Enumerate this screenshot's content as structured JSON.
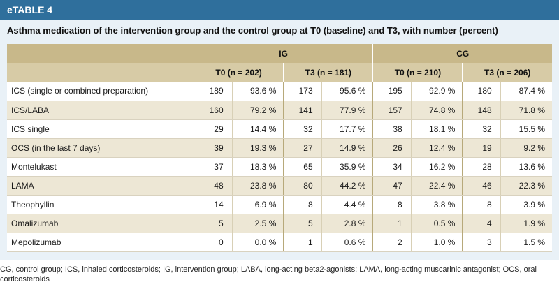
{
  "table_label": "eTABLE 4",
  "caption": "Asthma medication of the intervention group and the control group at T0 (baseline) and T3, with number (percent)",
  "groups": {
    "ig": "IG",
    "cg": "CG"
  },
  "subheaders": {
    "ig_t0": "T0 (n = 202)",
    "ig_t3": "T3 (n = 181)",
    "cg_t0": "T0 (n = 210)",
    "cg_t3": "T3 (n = 206)"
  },
  "rows": [
    {
      "label": "ICS (single or combined preparation)",
      "v": [
        "189",
        "93.6 %",
        "173",
        "95.6 %",
        "195",
        "92.9 %",
        "180",
        "87.4 %"
      ]
    },
    {
      "label": "ICS/LABA",
      "v": [
        "160",
        "79.2 %",
        "141",
        "77.9 %",
        "157",
        "74.8 %",
        "148",
        "71.8 %"
      ]
    },
    {
      "label": "ICS single",
      "v": [
        "29",
        "14.4 %",
        "32",
        "17.7 %",
        "38",
        "18.1 %",
        "32",
        "15.5 %"
      ]
    },
    {
      "label": "OCS (in the last 7 days)",
      "v": [
        "39",
        "19.3 %",
        "27",
        "14.9 %",
        "26",
        "12.4 %",
        "19",
        "9.2 %"
      ]
    },
    {
      "label": "Montelukast",
      "v": [
        "37",
        "18.3 %",
        "65",
        "35.9 %",
        "34",
        "16.2 %",
        "28",
        "13.6 %"
      ]
    },
    {
      "label": "LAMA",
      "v": [
        "48",
        "23.8 %",
        "80",
        "44.2 %",
        "47",
        "22.4 %",
        "46",
        "22.3 %"
      ]
    },
    {
      "label": "Theophyllin",
      "v": [
        "14",
        "6.9 %",
        "8",
        "4.4 %",
        "8",
        "3.8 %",
        "8",
        "3.9 %"
      ]
    },
    {
      "label": "Omalizumab",
      "v": [
        "5",
        "2.5 %",
        "5",
        "2.8 %",
        "1",
        "0.5 %",
        "4",
        "1.9 %"
      ]
    },
    {
      "label": "Mepolizumab",
      "v": [
        "0",
        "0.0 %",
        "1",
        "0.6 %",
        "2",
        "1.0 %",
        "3",
        "1.5 %"
      ]
    }
  ],
  "footnote": "CG, control group; ICS, inhaled corticosteroids; IG, intervention group; LABA, long-acting beta2-agonists; LAMA, long-acting muscarinic antagonist; OCS, oral corticosteroids"
}
